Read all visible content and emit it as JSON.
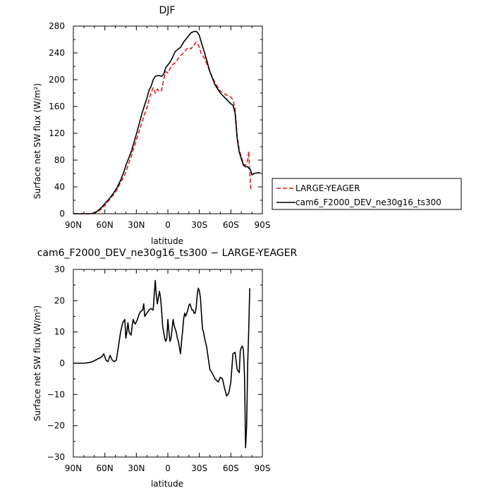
{
  "chart_data": [
    {
      "type": "line",
      "title": "DJF",
      "xlabel": "latitude",
      "ylabel": "Surface net SW flux (W/m²)",
      "xlim": [
        90,
        -90
      ],
      "ylim": [
        0,
        280
      ],
      "xticks": [
        {
          "value": 90,
          "label": "90N"
        },
        {
          "value": 60,
          "label": "60N"
        },
        {
          "value": 30,
          "label": "30N"
        },
        {
          "value": 0,
          "label": "0"
        },
        {
          "value": -30,
          "label": "30S"
        },
        {
          "value": -60,
          "label": "60S"
        },
        {
          "value": -90,
          "label": "90S"
        }
      ],
      "yticks": [
        0,
        40,
        80,
        120,
        160,
        200,
        240,
        280
      ],
      "legend_position": "right",
      "series": [
        {
          "name": "LARGE-YEAGER",
          "color": "#e31a1c",
          "style": "dashed",
          "x": [
            90,
            80,
            74,
            70,
            67,
            64,
            60,
            56,
            52,
            48,
            45,
            42,
            40,
            38,
            35,
            32,
            29,
            27,
            25,
            23,
            20,
            18,
            16,
            14,
            12,
            10,
            8,
            6,
            4,
            2,
            0,
            -2,
            -4,
            -7,
            -10,
            -12,
            -15,
            -18,
            -20,
            -22,
            -25,
            -27,
            -28,
            -30,
            -32,
            -35,
            -40,
            -45,
            -50,
            -55,
            -60,
            -62,
            -64,
            -66,
            -68,
            -72,
            -74,
            -76,
            -77,
            -78,
            -79
          ],
          "y": [
            0,
            0,
            0,
            1,
            3,
            6,
            12,
            20,
            28,
            37,
            47,
            55,
            62,
            72,
            85,
            100,
            115,
            125,
            135,
            145,
            158,
            170,
            180,
            188,
            180,
            186,
            182,
            184,
            200,
            212,
            210,
            216,
            222,
            225,
            232,
            236,
            240,
            246,
            248,
            246,
            252,
            256,
            255,
            248,
            238,
            232,
            212,
            195,
            183,
            178,
            174,
            170,
            157,
            116,
            95,
            74,
            72,
            80,
            93,
            65,
            35
          ]
        },
        {
          "name": "cam6_F2000_DEV_ne30g16_ts300",
          "color": "#000000",
          "style": "solid",
          "x": [
            90,
            80,
            74,
            70,
            67,
            64,
            60,
            56,
            52,
            48,
            45,
            42,
            40,
            38,
            35,
            32,
            29,
            27,
            25,
            23,
            20,
            18,
            16,
            14,
            12,
            10,
            8,
            6,
            4,
            2,
            0,
            -2,
            -4,
            -7,
            -10,
            -12,
            -15,
            -18,
            -20,
            -22,
            -25,
            -27,
            -28,
            -30,
            -32,
            -35,
            -40,
            -45,
            -50,
            -55,
            -60,
            -62,
            -64,
            -66,
            -68,
            -72,
            -74,
            -76,
            -77,
            -78,
            -79,
            -80,
            -82,
            -85,
            -88
          ],
          "y": [
            0,
            0,
            0,
            1,
            4,
            8,
            15,
            22,
            30,
            40,
            50,
            62,
            72,
            80,
            92,
            108,
            124,
            136,
            148,
            158,
            172,
            184,
            190,
            200,
            205,
            206,
            206,
            205,
            208,
            218,
            222,
            226,
            232,
            242,
            246,
            248,
            256,
            262,
            266,
            270,
            272,
            272,
            271,
            266,
            255,
            240,
            212,
            192,
            180,
            172,
            164,
            162,
            150,
            112,
            92,
            72,
            70,
            70,
            68,
            67,
            64,
            58,
            60,
            61,
            61
          ]
        }
      ]
    },
    {
      "type": "line",
      "title": "cam6_F2000_DEV_ne30g16_ts300 − LARGE-YEAGER",
      "xlabel": "latitude",
      "ylabel": "Surface net SW flux (W/m²)",
      "xlim": [
        90,
        -90
      ],
      "ylim": [
        -30,
        30
      ],
      "xticks": [
        {
          "value": 90,
          "label": "90N"
        },
        {
          "value": 60,
          "label": "60N"
        },
        {
          "value": 30,
          "label": "30N"
        },
        {
          "value": 0,
          "label": "0"
        },
        {
          "value": -30,
          "label": "30S"
        },
        {
          "value": -60,
          "label": "60S"
        },
        {
          "value": -90,
          "label": "90S"
        }
      ],
      "yticks": [
        -30,
        -20,
        -10,
        0,
        10,
        20,
        30
      ],
      "series": [
        {
          "color": "#000000",
          "style": "solid",
          "x": [
            90,
            80,
            75,
            72,
            69,
            66,
            63,
            61,
            59,
            57,
            55,
            53,
            51,
            49,
            47,
            45,
            43,
            41,
            40,
            39,
            38,
            37,
            36,
            35,
            34,
            33,
            32,
            31,
            29,
            27,
            26,
            24,
            23,
            22,
            20,
            19,
            18,
            16,
            14,
            12,
            11,
            10,
            9,
            8,
            7,
            6,
            5,
            4,
            3,
            2,
            1,
            0,
            -1,
            -2,
            -3,
            -4,
            -5,
            -6,
            -7,
            -8,
            -9,
            -10,
            -11,
            -12,
            -13,
            -14,
            -15,
            -16,
            -17,
            -18,
            -19,
            -20,
            -21,
            -22,
            -23,
            -24,
            -25,
            -26,
            -27,
            -28,
            -29,
            -30,
            -31,
            -32,
            -33,
            -34,
            -35,
            -37,
            -40,
            -42,
            -45,
            -48,
            -50,
            -52,
            -54,
            -56,
            -58,
            -60,
            -62,
            -64,
            -66,
            -68,
            -69,
            -70,
            -71,
            -72,
            -73,
            -74,
            -75,
            -76,
            -77,
            -78
          ],
          "y": [
            0,
            0,
            0.2,
            0.5,
            1.0,
            1.5,
            2.0,
            3.0,
            1.0,
            0.5,
            2.5,
            1.0,
            0.5,
            1.0,
            5.5,
            10.0,
            13.0,
            14.0,
            8.0,
            10.0,
            13.0,
            10.0,
            9.5,
            9.0,
            12.0,
            14.0,
            13.0,
            12.5,
            14.0,
            16.0,
            16.5,
            17.0,
            19.0,
            15.0,
            16.0,
            16.5,
            17.0,
            17.5,
            17.0,
            26.5,
            22.0,
            19.0,
            21.0,
            23.0,
            21.0,
            17.0,
            12.0,
            10.0,
            8.0,
            7.0,
            8.0,
            14.0,
            10.0,
            7.0,
            8.0,
            11.0,
            14.0,
            12.0,
            11.0,
            10.0,
            8.0,
            7.0,
            5.0,
            3.0,
            7.0,
            10.0,
            14.0,
            16.0,
            15.0,
            16.0,
            17.0,
            18.5,
            19.0,
            18.0,
            17.0,
            17.0,
            16.0,
            16.0,
            18.0,
            22.0,
            24.0,
            23.0,
            21.0,
            16.0,
            11.0,
            10.0,
            8.0,
            5.0,
            -2.0,
            -3.0,
            -5.0,
            -6.0,
            -4.5,
            -5.0,
            -8.0,
            -10.5,
            -9.5,
            -6.0,
            3.0,
            3.5,
            -2.0,
            -3.0,
            4.0,
            5.0,
            5.5,
            4.0,
            -4.0,
            -27.0,
            -20.0,
            0.0,
            10.0,
            24.0
          ]
        }
      ]
    }
  ]
}
